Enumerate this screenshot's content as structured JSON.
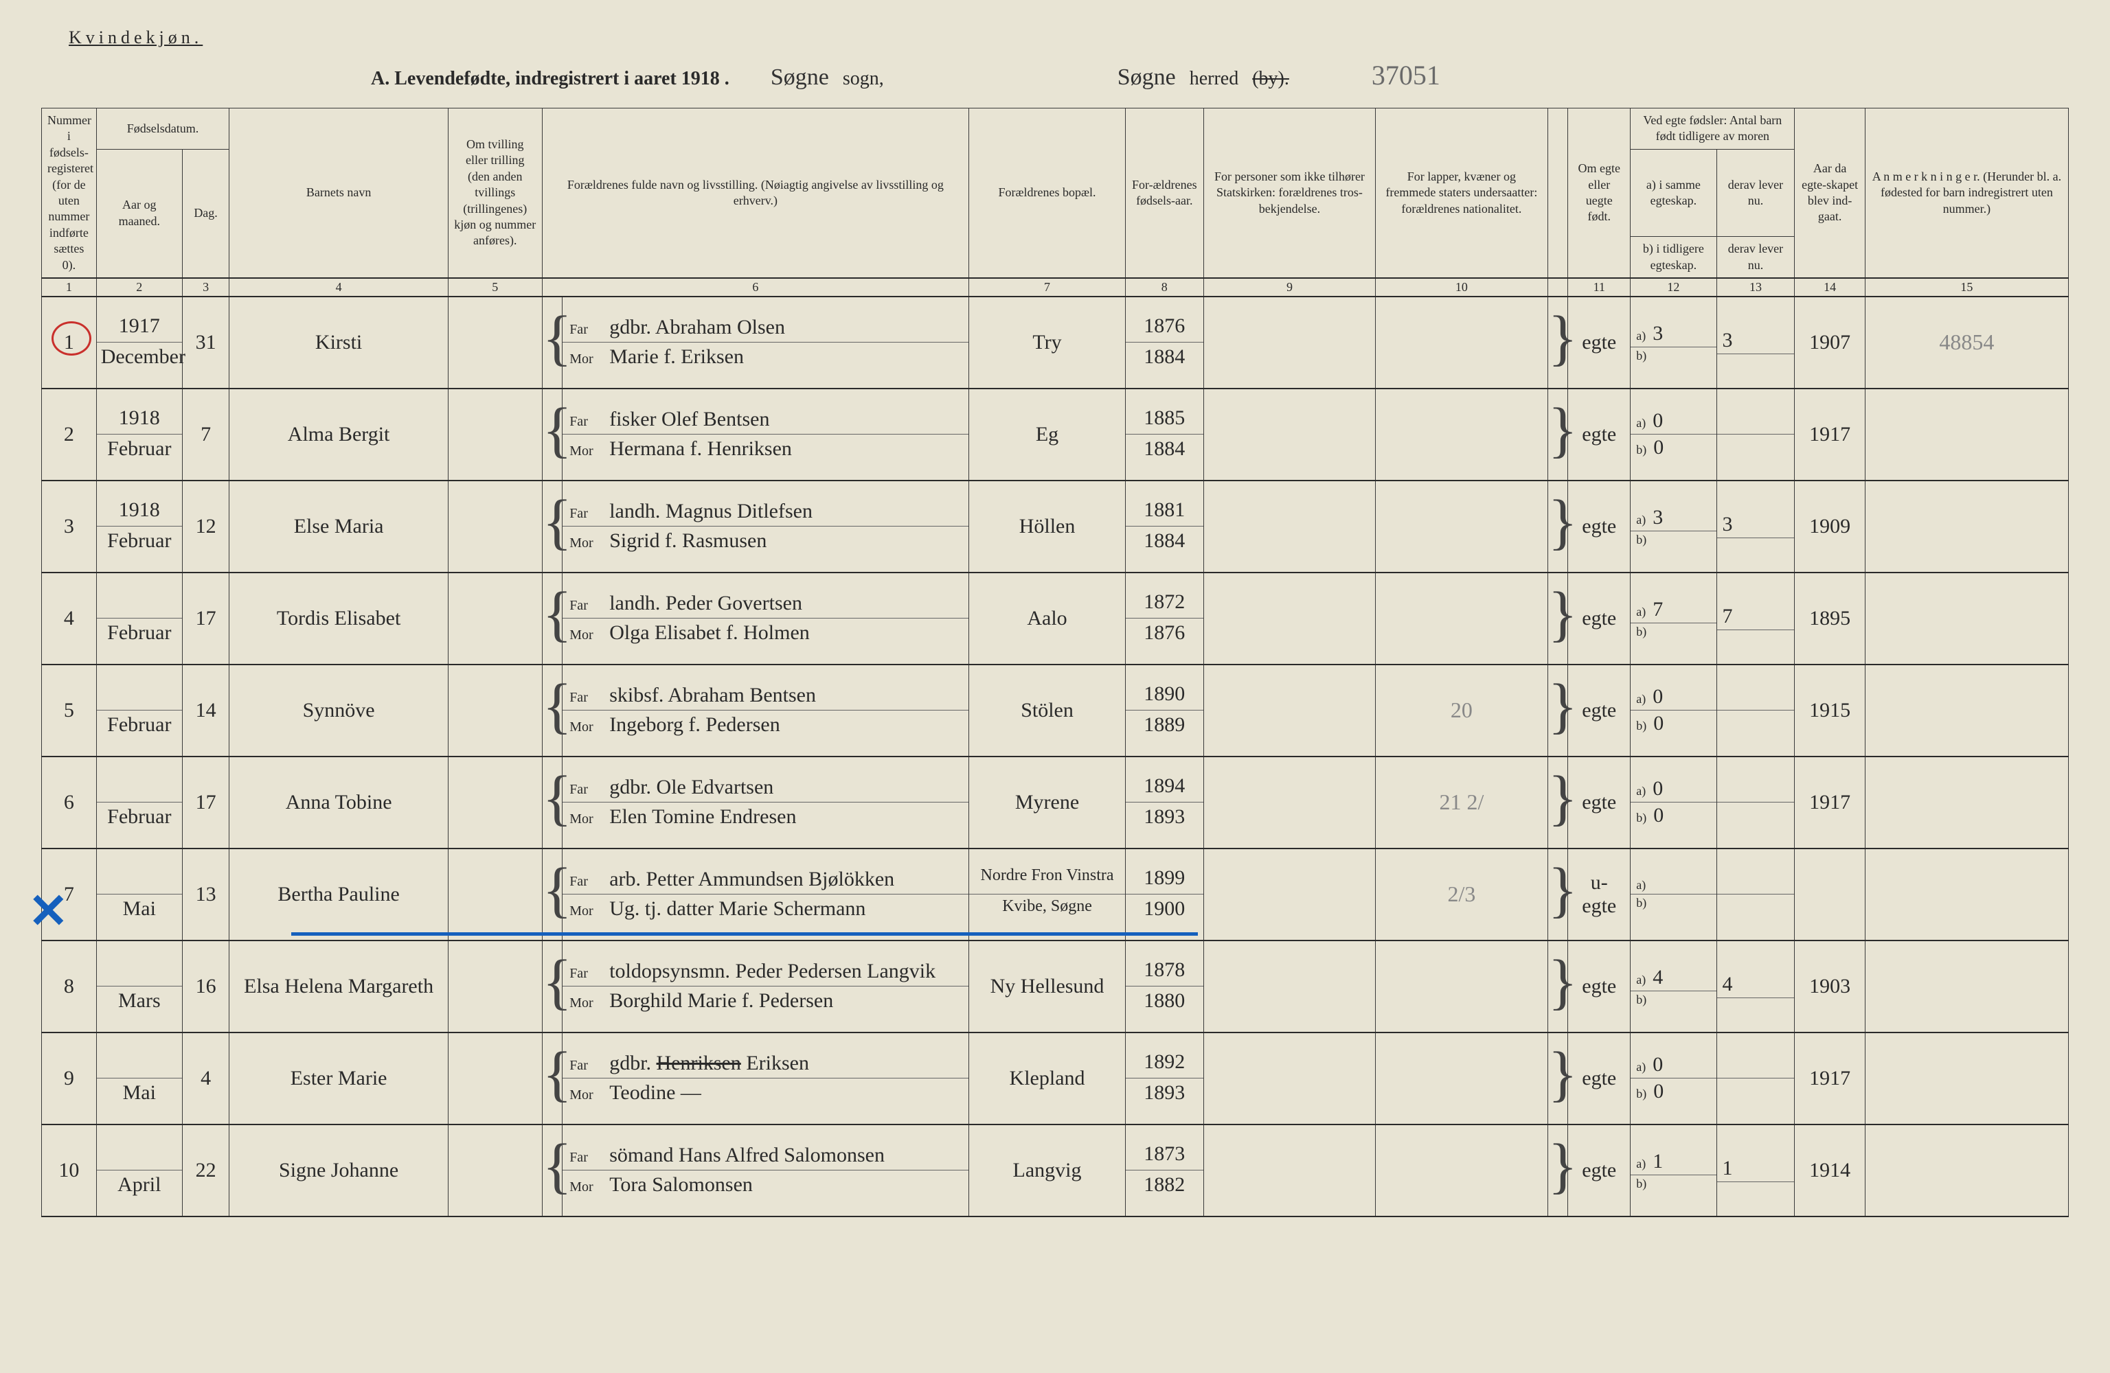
{
  "header": {
    "gender_label": "Kvindekjøn.",
    "title": "A. Levendefødte, indregistrert i aaret 1918 .",
    "sogn_hand": "Søgne",
    "sogn_label": "sogn,",
    "herred_hand": "Søgne",
    "herred_label": "herred",
    "by_struck": "(by).",
    "top_right_annot": "37051"
  },
  "columns": {
    "c1": "Nummer i fødsels-registeret (for de uten nummer indførte sættes 0).",
    "c2_top": "Fødselsdatum.",
    "c2a": "Aar og maaned.",
    "c2b": "Dag.",
    "c4": "Barnets navn",
    "c5": "Om tvilling eller trilling (den anden tvillings (trillingenes) kjøn og nummer anføres).",
    "c6": "Forældrenes fulde navn og livsstilling. (Nøiagtig angivelse av livsstilling og erhverv.)",
    "c7": "Forældrenes bopæl.",
    "c8": "For-ældrenes fødsels-aar.",
    "c9": "For personer som ikke tilhører Statskirken: forældrenes tros-bekjendelse.",
    "c10": "For lapper, kvæner og fremmede staters undersaatter: forældrenes nationalitet.",
    "c11": "Om egte eller uegte født.",
    "c12_top": "Ved egte fødsler: Antal barn født tidligere av moren",
    "c12a": "a) i samme egteskap.",
    "c12b": "b) i tidligere egteskap.",
    "c13a": "derav lever nu.",
    "c13b": "derav lever nu.",
    "c14": "Aar da egte-skapet blev ind-gaat.",
    "c15": "A n m e r k n i n g e r. (Herunder bl. a. fødested for barn indregistrert uten nummer.)",
    "nums": [
      "1",
      "2",
      "3",
      "4",
      "5",
      "6",
      "7",
      "8",
      "9",
      "10",
      "11",
      "12",
      "13",
      "14",
      "15"
    ]
  },
  "rows": [
    {
      "n": "1",
      "circled": true,
      "year": "1917",
      "month": "December",
      "day": "31",
      "name": "Kirsti",
      "twin": "",
      "far": "gdbr. Abraham Olsen",
      "mor": "Marie f. Eriksen",
      "bosted": "Try",
      "far_aar": "1876",
      "mor_aar": "1884",
      "c9": "",
      "c10": "",
      "egte": "egte",
      "a": "3",
      "a_lever": "3",
      "b": "",
      "b_lever": "",
      "egteskap_aar": "1907",
      "anm": "48854",
      "anm_faint": true
    },
    {
      "n": "2",
      "year": "1918",
      "month": "Februar",
      "day": "7",
      "name": "Alma Bergit",
      "twin": "",
      "far": "fisker Olef Bentsen",
      "mor": "Hermana f. Henriksen",
      "bosted": "Eg",
      "far_aar": "1885",
      "mor_aar": "1884",
      "c9": "",
      "c10": "",
      "egte": "egte",
      "a": "0",
      "a_lever": "",
      "b": "0",
      "b_lever": "",
      "egteskap_aar": "1917",
      "anm": ""
    },
    {
      "n": "3",
      "year": "1918",
      "month": "Februar",
      "day": "12",
      "name": "Else Maria",
      "twin": "",
      "far": "landh. Magnus Ditlefsen",
      "mor": "Sigrid f. Rasmusen",
      "bosted": "Höllen",
      "far_aar": "1881",
      "mor_aar": "1884",
      "c9": "",
      "c10": "",
      "egte": "egte",
      "a": "3",
      "a_lever": "3",
      "b": "",
      "b_lever": "",
      "egteskap_aar": "1909",
      "anm": ""
    },
    {
      "n": "4",
      "year": "",
      "month": "Februar",
      "day": "17",
      "name": "Tordis Elisabet",
      "twin": "",
      "far": "landh. Peder Govertsen",
      "mor": "Olga Elisabet f. Holmen",
      "bosted": "Aalo",
      "far_aar": "1872",
      "mor_aar": "1876",
      "c9": "",
      "c10": "",
      "egte": "egte",
      "a": "7",
      "a_lever": "7",
      "b": "",
      "b_lever": "",
      "egteskap_aar": "1895",
      "anm": ""
    },
    {
      "n": "5",
      "year": "",
      "month": "Februar",
      "day": "14",
      "name": "Synnöve",
      "twin": "",
      "far": "skibsf. Abraham Bentsen",
      "mor": "Ingeborg f. Pedersen",
      "bosted": "Stölen",
      "far_aar": "1890",
      "mor_aar": "1889",
      "c9": "",
      "c10": "20",
      "c10_faint": true,
      "egte": "egte",
      "a": "0",
      "a_lever": "",
      "b": "0",
      "b_lever": "",
      "egteskap_aar": "1915",
      "anm": ""
    },
    {
      "n": "6",
      "year": "",
      "month": "Februar",
      "day": "17",
      "name": "Anna Tobine",
      "twin": "",
      "far": "gdbr. Ole Edvartsen",
      "mor": "Elen Tomine Endresen",
      "bosted": "Myrene",
      "far_aar": "1894",
      "mor_aar": "1893",
      "c9": "",
      "c10": "21  2/",
      "c10_faint": true,
      "egte": "egte",
      "a": "0",
      "a_lever": "",
      "b": "0",
      "b_lever": "",
      "egteskap_aar": "1917",
      "anm": ""
    },
    {
      "n": "7",
      "blue_x": true,
      "blue_strike": true,
      "year": "",
      "month": "Mai",
      "day": "13",
      "name": "Bertha Pauline",
      "twin": "",
      "far": "arb. Petter Ammundsen Bjølökken",
      "mor": "Ug. tj. datter Marie Schermann",
      "bosted": "Nordre Fron Vinstra",
      "bosted2": "Kvibe, Søgne",
      "far_aar": "1899",
      "mor_aar": "1900",
      "c9": "",
      "c10": "2/3",
      "c10_faint": true,
      "egte": "u-egte",
      "a": "",
      "a_lever": "",
      "b": "",
      "b_lever": "",
      "egteskap_aar": "",
      "anm": ""
    },
    {
      "n": "8",
      "year": "",
      "month": "Mars",
      "day": "16",
      "name": "Elsa Helena Margareth",
      "twin": "",
      "far": "toldopsynsmn. Peder Pedersen Langvik",
      "mor": "Borghild Marie f. Pedersen",
      "bosted": "Ny Hellesund",
      "far_aar": "1878",
      "mor_aar": "1880",
      "c9": "",
      "c10": "",
      "egte": "egte",
      "a": "4",
      "a_lever": "4",
      "b": "",
      "b_lever": "",
      "egteskap_aar": "1903",
      "anm": ""
    },
    {
      "n": "9",
      "year": "",
      "month": "Mai",
      "day": "4",
      "name": "Ester Marie",
      "twin": "",
      "far": "gdbr. Henriksen Eriksen",
      "far_strike": "Henriksen",
      "mor": "Teodine    —",
      "bosted": "Klepland",
      "far_aar": "1892",
      "mor_aar": "1893",
      "c9": "",
      "c10": "",
      "egte": "egte",
      "a": "0",
      "a_lever": "",
      "b": "0",
      "b_lever": "",
      "egteskap_aar": "1917",
      "anm": ""
    },
    {
      "n": "10",
      "year": "",
      "month": "April",
      "day": "22",
      "name": "Signe Johanne",
      "twin": "",
      "far": "sömand Hans Alfred Salomonsen",
      "mor": "Tora Salomonsen",
      "bosted": "Langvig",
      "far_aar": "1873",
      "mor_aar": "1882",
      "c9": "",
      "c10": "",
      "egte": "egte",
      "a": "1",
      "a_lever": "1",
      "b": "",
      "b_lever": "",
      "egteskap_aar": "1914",
      "anm": ""
    }
  ],
  "labels": {
    "far": "Far",
    "mor": "Mor",
    "a": "a)",
    "b": "b)"
  },
  "colwidths": {
    "c1": 70,
    "c2a": 110,
    "c2b": 60,
    "c4": 280,
    "c5": 120,
    "c6": 520,
    "c7": 200,
    "c8": 100,
    "c9": 220,
    "c10": 220,
    "c11": 80,
    "c12": 110,
    "c13": 100,
    "c14": 90,
    "c15": 260,
    "brace": 26
  },
  "colors": {
    "paper": "#e8e4d4",
    "ink": "#2a2a2a",
    "red": "#c9302c",
    "blue": "#1560bd",
    "faint": "#888888",
    "rule": "#3a3a3a"
  }
}
